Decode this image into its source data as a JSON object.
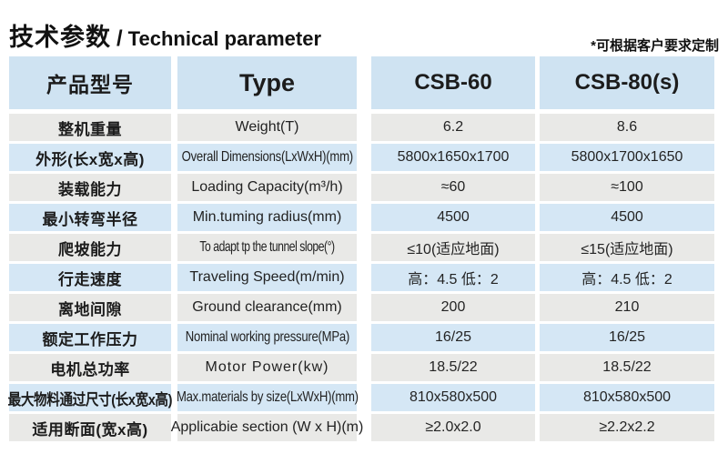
{
  "title": {
    "zh": "技术参数",
    "sep": "/",
    "en": "Technical parameter"
  },
  "note": "*可根据客户要求定制",
  "colors": {
    "header_blue": "#cfe3f2",
    "row_blue": "#d5e7f5",
    "row_gray": "#e9e9e7",
    "text": "#1c1c1c",
    "background": "#ffffff"
  },
  "table": {
    "header": {
      "col1": "产品型号",
      "col2": "Type",
      "col3": "CSB-60",
      "col4": "CSB-80(s)"
    },
    "rows": [
      {
        "zh": "整机重量",
        "en": "Weight(T)",
        "csb60": "6.2",
        "csb80": "8.6"
      },
      {
        "zh": "外形(长x宽x高)",
        "en": "Overall Dimensions(LxWxH)(mm)",
        "csb60": "5800x1650x1700",
        "csb80": "5800x1700x1650"
      },
      {
        "zh": "装载能力",
        "en": "Loading Capacity(m³/h)",
        "csb60": "≈60",
        "csb80": "≈100"
      },
      {
        "zh": "最小转弯半径",
        "en": "Min.tuming radius(mm)",
        "csb60": "4500",
        "csb80": "4500"
      },
      {
        "zh": "爬坡能力",
        "en": "To adapt tp the tunnel slope(°)",
        "csb60": "≤10(适应地面)",
        "csb80": "≤15(适应地面)"
      },
      {
        "zh": "行走速度",
        "en": "Traveling Speed(m/min)",
        "csb60": "高：4.5 低：2",
        "csb80": "高：4.5 低：2"
      },
      {
        "zh": "离地间隙",
        "en": "Ground clearance(mm)",
        "csb60": "200",
        "csb80": "210"
      },
      {
        "zh": "额定工作压力",
        "en": "Nominal working pressure(MPa)",
        "csb60": "16/25",
        "csb80": "16/25"
      },
      {
        "zh": "电机总功率",
        "en": "Motor Power(kw)",
        "csb60": "18.5/22",
        "csb80": "18.5/22"
      },
      {
        "zh": "最大物料通过尺寸(长x宽x高)",
        "en": "Max.materials by size(LxWxH)(mm)",
        "csb60": "810x580x500",
        "csb80": "810x580x500"
      },
      {
        "zh": "适用断面(宽x高)",
        "en": "Applicabie section (W x H)(m)",
        "csb60": "≥2.0x2.0",
        "csb80": "≥2.2x2.2"
      }
    ]
  }
}
